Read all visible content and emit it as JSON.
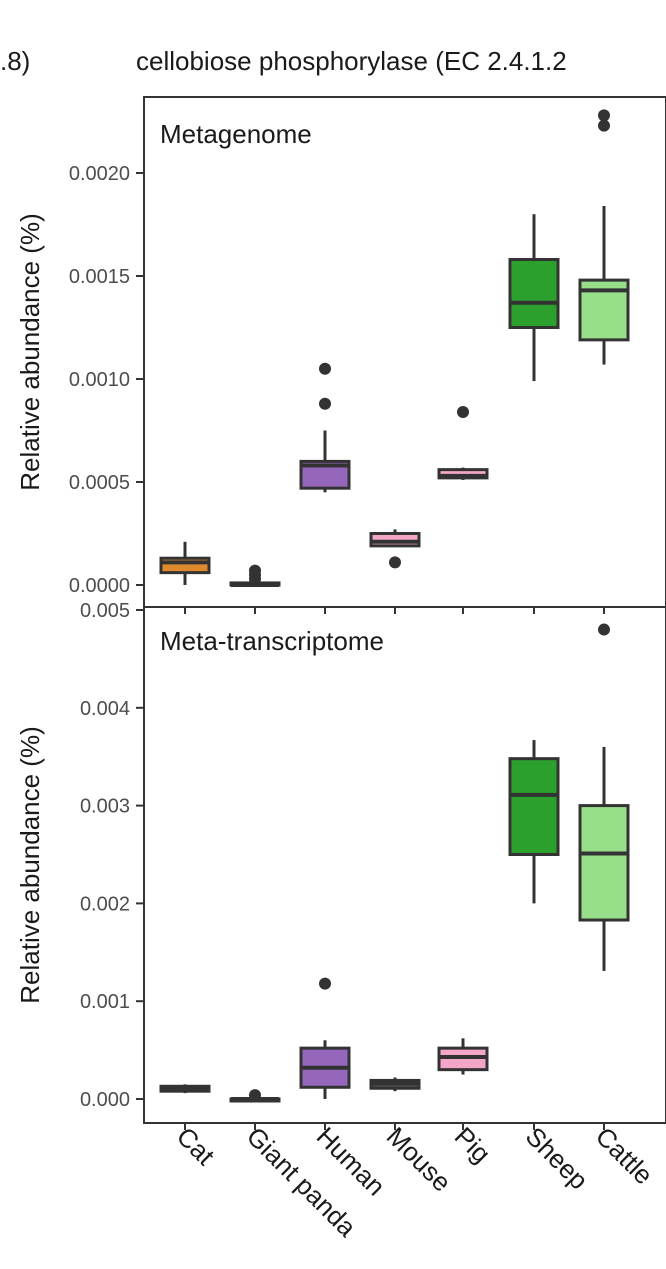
{
  "header": {
    "left_label": ".8)",
    "title": "cellobiose phosphorylase (EC 2.4.1.2"
  },
  "chart_data": [
    {
      "type": "box",
      "panel_label": "Metagenome",
      "ylabel": "Relative abundance (%)",
      "ylim": [
        -5e-05,
        0.00233
      ],
      "yticks": [
        "0.0000",
        "0.0005",
        "0.0010",
        "0.0015",
        "0.0020"
      ],
      "ytick_values": [
        0,
        0.0005,
        0.001,
        0.0015,
        0.002
      ],
      "categories": [
        "Cat",
        "Giant panda",
        "Human",
        "Mouse",
        "Pig",
        "Sheep",
        "Cattle"
      ],
      "boxes": [
        {
          "category": "Cat",
          "low": 0.0,
          "q1": 6e-05,
          "median": 0.00011,
          "q3": 0.00013,
          "high": 0.00021,
          "outliers": [],
          "color": "#e08a2e"
        },
        {
          "category": "Giant panda",
          "low": 0.0,
          "q1": 0.0,
          "median": 0.0,
          "q3": 1e-05,
          "high": 2e-05,
          "outliers": [
            3e-05,
            5e-05,
            7e-05
          ],
          "color": "#4d4d4d"
        },
        {
          "category": "Human",
          "low": 0.00045,
          "q1": 0.00047,
          "median": 0.00058,
          "q3": 0.0006,
          "high": 0.00075,
          "outliers": [
            0.00088,
            0.00105
          ],
          "color": "#9467bd"
        },
        {
          "category": "Mouse",
          "low": 0.00019,
          "q1": 0.00019,
          "median": 0.00021,
          "q3": 0.00025,
          "high": 0.00027,
          "outliers": [
            0.00011
          ],
          "color": "#f4a6c8"
        },
        {
          "category": "Pig",
          "low": 0.00051,
          "q1": 0.00052,
          "median": 0.00053,
          "q3": 0.00056,
          "high": 0.00057,
          "outliers": [
            0.00084
          ],
          "color": "#f4a6c8"
        },
        {
          "category": "Sheep",
          "low": 0.00099,
          "q1": 0.00125,
          "median": 0.00137,
          "q3": 0.00158,
          "high": 0.0018,
          "outliers": [],
          "color": "#2ca02c"
        },
        {
          "category": "Cattle",
          "low": 0.00107,
          "q1": 0.00119,
          "median": 0.00143,
          "q3": 0.00148,
          "high": 0.00184,
          "outliers": [
            0.00223,
            0.00228
          ],
          "color": "#98df8a"
        }
      ]
    },
    {
      "type": "box",
      "panel_label": "Meta-transcriptome",
      "ylabel": "Relative abundance (%)",
      "ylim": [
        -0.00025,
        0.005
      ],
      "yticks": [
        "0.000",
        "0.001",
        "0.002",
        "0.003",
        "0.004",
        "0.005"
      ],
      "ytick_values": [
        0,
        0.001,
        0.002,
        0.003,
        0.004,
        0.005
      ],
      "categories": [
        "Cat",
        "Giant panda",
        "Human",
        "Mouse",
        "Pig",
        "Sheep",
        "Cattle"
      ],
      "boxes": [
        {
          "category": "Cat",
          "low": 6e-05,
          "q1": 8e-05,
          "median": 0.0001,
          "q3": 0.00013,
          "high": 0.00015,
          "outliers": [],
          "color": "#e08a2e"
        },
        {
          "category": "Giant panda",
          "low": -2e-05,
          "q1": -2e-05,
          "median": 0.0,
          "q3": 0.0,
          "high": 1e-05,
          "outliers": [
            4e-05
          ],
          "color": "#4d4d4d"
        },
        {
          "category": "Human",
          "low": 0.0,
          "q1": 0.00012,
          "median": 0.00032,
          "q3": 0.00052,
          "high": 0.0006,
          "outliers": [
            0.00118
          ],
          "color": "#9467bd"
        },
        {
          "category": "Mouse",
          "low": 8e-05,
          "q1": 0.00011,
          "median": 0.00016,
          "q3": 0.00019,
          "high": 0.00022,
          "outliers": [],
          "color": "#4d4d4d"
        },
        {
          "category": "Pig",
          "low": 0.00025,
          "q1": 0.0003,
          "median": 0.00043,
          "q3": 0.00052,
          "high": 0.00062,
          "outliers": [],
          "color": "#f4a6c8"
        },
        {
          "category": "Sheep",
          "low": 0.002,
          "q1": 0.0025,
          "median": 0.00311,
          "q3": 0.00348,
          "high": 0.00367,
          "outliers": [],
          "color": "#2ca02c"
        },
        {
          "category": "Cattle",
          "low": 0.00131,
          "q1": 0.00183,
          "median": 0.00251,
          "q3": 0.003,
          "high": 0.0036,
          "outliers": [
            0.0048
          ],
          "color": "#98df8a"
        }
      ]
    }
  ]
}
